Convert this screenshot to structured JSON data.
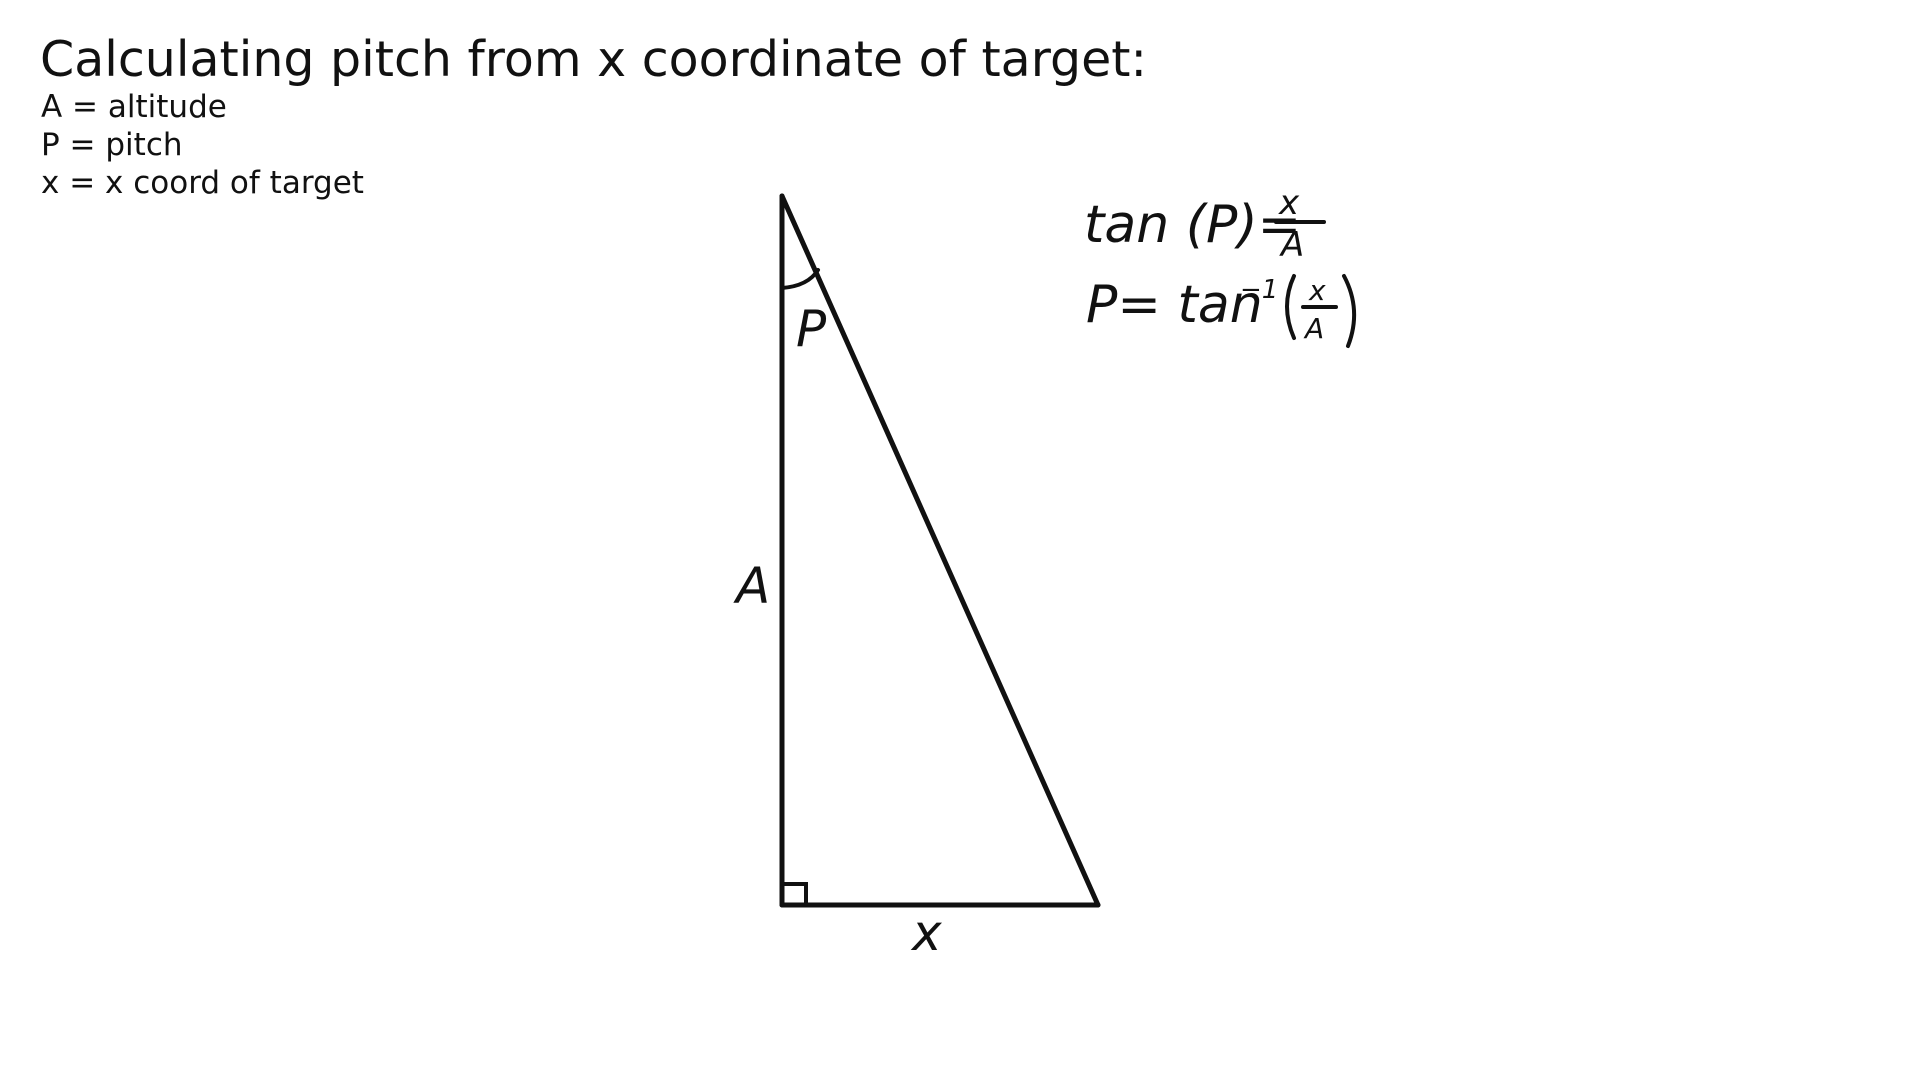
{
  "title": "Calculating pitch from x coordinate of target:",
  "legend": [
    "A = altitude",
    "P = pitch",
    "x = x coord of target"
  ],
  "diagram": {
    "angle_label": "P",
    "vertical_side_label": "A",
    "horizontal_side_label": "x",
    "equations": {
      "eq1_lhs": "tan (P)=",
      "eq1_num": "x",
      "eq1_den": "A",
      "eq2_lhs": "P= tan",
      "eq2_exp": "−1",
      "eq2_num": "x",
      "eq2_den": "A"
    }
  }
}
